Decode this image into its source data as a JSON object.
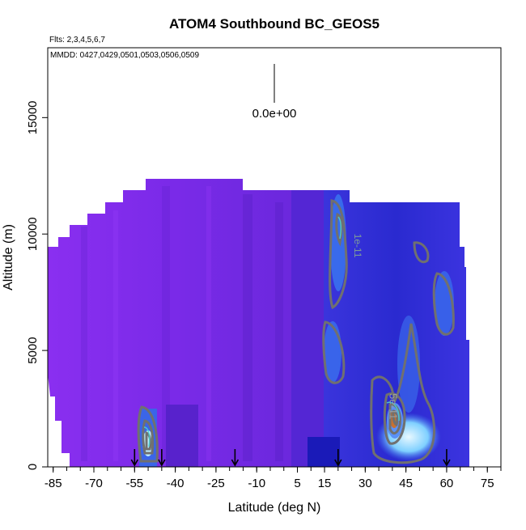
{
  "chart_data": {
    "type": "heatmap",
    "title": "ATOM4 Southbound BC_GEOS5",
    "flights_note": "Flts: 2,3,4,5,6,7",
    "dates_note": "MMDD: 0427,0429,0501,0503,0506,0509",
    "xlabel": "Latitude (deg N)",
    "ylabel": "Altitude (m)",
    "xlim": [
      -87,
      80
    ],
    "ylim": [
      0,
      18000
    ],
    "x_ticks": [
      -85,
      -70,
      -55,
      -40,
      -25,
      -10,
      5,
      15,
      30,
      45,
      60,
      75
    ],
    "x_minor_step": 5,
    "y_ticks": [
      0,
      5000,
      10000,
      15000
    ],
    "scale_label": "0.0e+00",
    "contour_labels": [
      {
        "text": "1e-11",
        "x": 26,
        "y": 9500
      },
      {
        "text": "5e-11",
        "x": 39,
        "y": 2600
      }
    ],
    "profile_markers": [
      -55,
      -45,
      -18,
      20,
      60
    ],
    "colors": {
      "low": "#8b2cf0",
      "mid": "#3030d8",
      "high": "#a8e8ff",
      "peak": "#c87030",
      "contour": "#707070"
    }
  }
}
